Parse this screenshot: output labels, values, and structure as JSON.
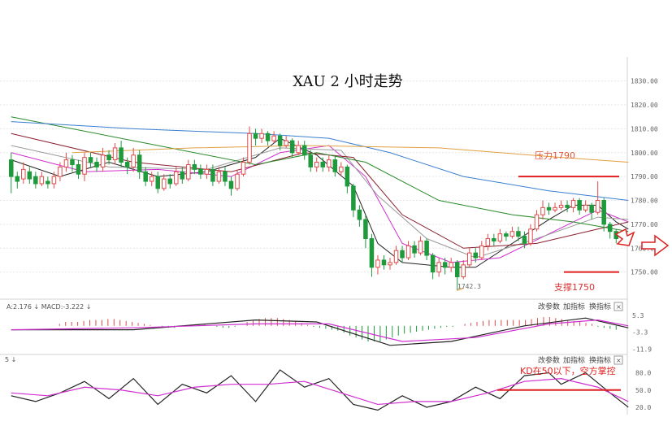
{
  "chart_data": {
    "type": "candlestick",
    "title": "XAU 2 小时走势",
    "symbol": "XAU",
    "timeframe": "2 小时",
    "ylim": [
      1740,
      1835
    ],
    "yticks": [
      "1830.00",
      "1820.00",
      "1810.00",
      "1800.00",
      "1790.00",
      "1780.00",
      "1770.00",
      "1760.00",
      "1750.00"
    ],
    "grid": true,
    "candles": [
      [
        1797,
        1790,
        1800,
        1783
      ],
      [
        1790,
        1788,
        1792,
        1785
      ],
      [
        1789,
        1793,
        1796,
        1787
      ],
      [
        1792,
        1789,
        1794,
        1787
      ],
      [
        1790,
        1787,
        1792,
        1785
      ],
      [
        1787,
        1790,
        1792,
        1786
      ],
      [
        1788,
        1787,
        1790,
        1785
      ],
      [
        1787,
        1790,
        1792,
        1785
      ],
      [
        1790,
        1794,
        1796,
        1788
      ],
      [
        1794,
        1797,
        1800,
        1792
      ],
      [
        1797,
        1795,
        1799,
        1792
      ],
      [
        1795,
        1791,
        1797,
        1789
      ],
      [
        1791,
        1798,
        1800,
        1788
      ],
      [
        1798,
        1796,
        1800,
        1794
      ],
      [
        1796,
        1794,
        1798,
        1792
      ],
      [
        1794,
        1799,
        1802,
        1792
      ],
      [
        1799,
        1797,
        1801,
        1795
      ],
      [
        1797,
        1802,
        1804,
        1795
      ],
      [
        1802,
        1796,
        1805,
        1794
      ],
      [
        1796,
        1794,
        1798,
        1791
      ],
      [
        1794,
        1799,
        1802,
        1792
      ],
      [
        1799,
        1792,
        1801,
        1789
      ],
      [
        1792,
        1788,
        1794,
        1786
      ],
      [
        1788,
        1790,
        1792,
        1786
      ],
      [
        1790,
        1785,
        1792,
        1783
      ],
      [
        1785,
        1789,
        1791,
        1784
      ],
      [
        1789,
        1787,
        1791,
        1785
      ],
      [
        1787,
        1792,
        1794,
        1786
      ],
      [
        1792,
        1789,
        1794,
        1787
      ],
      [
        1789,
        1795,
        1797,
        1788
      ],
      [
        1795,
        1793,
        1797,
        1791
      ],
      [
        1793,
        1791,
        1795,
        1789
      ],
      [
        1791,
        1793,
        1795,
        1789
      ],
      [
        1793,
        1788,
        1795,
        1786
      ],
      [
        1788,
        1792,
        1794,
        1787
      ],
      [
        1792,
        1788,
        1794,
        1786
      ],
      [
        1788,
        1785,
        1790,
        1782
      ],
      [
        1785,
        1791,
        1793,
        1784
      ],
      [
        1791,
        1796,
        1798,
        1790
      ],
      [
        1796,
        1808,
        1811,
        1795
      ],
      [
        1808,
        1806,
        1810,
        1803
      ],
      [
        1806,
        1808,
        1810,
        1804
      ],
      [
        1808,
        1805,
        1809,
        1803
      ],
      [
        1805,
        1807,
        1809,
        1804
      ],
      [
        1807,
        1803,
        1808,
        1801
      ],
      [
        1803,
        1805,
        1807,
        1802
      ],
      [
        1805,
        1800,
        1806,
        1798
      ],
      [
        1800,
        1803,
        1805,
        1799
      ],
      [
        1803,
        1799,
        1805,
        1797
      ],
      [
        1799,
        1794,
        1801,
        1792
      ],
      [
        1794,
        1796,
        1798,
        1792
      ],
      [
        1796,
        1794,
        1798,
        1792
      ],
      [
        1794,
        1797,
        1799,
        1792
      ],
      [
        1797,
        1792,
        1799,
        1790
      ],
      [
        1792,
        1794,
        1796,
        1790
      ],
      [
        1794,
        1786,
        1795,
        1783
      ],
      [
        1786,
        1776,
        1787,
        1773
      ],
      [
        1776,
        1772,
        1778,
        1769
      ],
      [
        1772,
        1764,
        1774,
        1760
      ],
      [
        1764,
        1752,
        1766,
        1748
      ],
      [
        1752,
        1755,
        1757,
        1749
      ],
      [
        1755,
        1753,
        1757,
        1751
      ],
      [
        1753,
        1754,
        1756,
        1751
      ],
      [
        1754,
        1759,
        1761,
        1753
      ],
      [
        1759,
        1756,
        1761,
        1754
      ],
      [
        1756,
        1761,
        1763,
        1755
      ],
      [
        1761,
        1758,
        1763,
        1756
      ],
      [
        1758,
        1763,
        1765,
        1757
      ],
      [
        1763,
        1757,
        1764,
        1755
      ],
      [
        1757,
        1750,
        1758,
        1747
      ],
      [
        1750,
        1754,
        1756,
        1748
      ],
      [
        1754,
        1752,
        1756,
        1749
      ],
      [
        1752,
        1754,
        1756,
        1750
      ],
      [
        1754,
        1748,
        1755,
        1742.3
      ],
      [
        1748,
        1753,
        1755,
        1747
      ],
      [
        1753,
        1758,
        1760,
        1752
      ],
      [
        1758,
        1756,
        1760,
        1754
      ],
      [
        1756,
        1761,
        1763,
        1755
      ],
      [
        1761,
        1764,
        1766,
        1759
      ],
      [
        1764,
        1763,
        1766,
        1761
      ],
      [
        1763,
        1766,
        1768,
        1762
      ],
      [
        1766,
        1765,
        1767,
        1763
      ],
      [
        1765,
        1767,
        1769,
        1764
      ],
      [
        1767,
        1765,
        1769,
        1763
      ],
      [
        1765,
        1762,
        1767,
        1760
      ],
      [
        1762,
        1768,
        1770,
        1761
      ],
      [
        1768,
        1774,
        1776,
        1767
      ],
      [
        1774,
        1777,
        1780,
        1772
      ],
      [
        1777,
        1776,
        1779,
        1774
      ],
      [
        1776,
        1777,
        1779,
        1775
      ],
      [
        1777,
        1778,
        1780,
        1776
      ],
      [
        1778,
        1777,
        1780,
        1775
      ],
      [
        1777,
        1780,
        1781,
        1775
      ],
      [
        1780,
        1776,
        1781,
        1774
      ],
      [
        1776,
        1778,
        1780,
        1775
      ],
      [
        1778,
        1775,
        1779,
        1772
      ],
      [
        1775,
        1780,
        1788,
        1774
      ],
      [
        1780,
        1770,
        1781,
        1767
      ],
      [
        1770,
        1767,
        1771,
        1764
      ],
      [
        1767,
        1764,
        1768,
        1762
      ]
    ],
    "moving_averages": {
      "black": [
        [
          0,
          1797
        ],
        [
          8,
          1790
        ],
        [
          16,
          1796
        ],
        [
          24,
          1790
        ],
        [
          32,
          1792
        ],
        [
          40,
          1798
        ],
        [
          44,
          1806
        ],
        [
          50,
          1799
        ],
        [
          56,
          1786
        ],
        [
          60,
          1762
        ],
        [
          64,
          1754
        ],
        [
          72,
          1752
        ],
        [
          76,
          1752
        ],
        [
          82,
          1762
        ],
        [
          88,
          1772
        ],
        [
          92,
          1778
        ],
        [
          96,
          1778
        ],
        [
          99,
          1771
        ],
        [
          101,
          1768
        ]
      ],
      "magenta": [
        [
          0,
          1800
        ],
        [
          12,
          1792
        ],
        [
          24,
          1793
        ],
        [
          36,
          1790
        ],
        [
          44,
          1800
        ],
        [
          52,
          1803
        ],
        [
          58,
          1790
        ],
        [
          64,
          1762
        ],
        [
          72,
          1754
        ],
        [
          80,
          1756
        ],
        [
          88,
          1766
        ],
        [
          96,
          1776
        ],
        [
          101,
          1771
        ]
      ],
      "gray": [
        [
          0,
          1803
        ],
        [
          16,
          1794
        ],
        [
          32,
          1793
        ],
        [
          44,
          1802
        ],
        [
          54,
          1801
        ],
        [
          60,
          1782
        ],
        [
          68,
          1764
        ],
        [
          76,
          1756
        ],
        [
          86,
          1764
        ],
        [
          96,
          1773
        ],
        [
          101,
          1772
        ]
      ],
      "darkred": [
        [
          0,
          1808
        ],
        [
          20,
          1796
        ],
        [
          36,
          1792
        ],
        [
          48,
          1800
        ],
        [
          56,
          1798
        ],
        [
          64,
          1774
        ],
        [
          74,
          1760
        ],
        [
          86,
          1762
        ],
        [
          96,
          1768
        ],
        [
          101,
          1771
        ]
      ],
      "green": [
        [
          0,
          1815
        ],
        [
          20,
          1805
        ],
        [
          40,
          1795
        ],
        [
          50,
          1800
        ],
        [
          58,
          1796
        ],
        [
          70,
          1780
        ],
        [
          82,
          1774
        ],
        [
          92,
          1771
        ],
        [
          101,
          1767
        ]
      ],
      "blue": [
        [
          0,
          1813
        ],
        [
          20,
          1810
        ],
        [
          40,
          1808
        ],
        [
          52,
          1806
        ],
        [
          62,
          1800
        ],
        [
          74,
          1790
        ],
        [
          88,
          1784
        ],
        [
          101,
          1780
        ]
      ],
      "orange": [
        [
          10,
          1800
        ],
        [
          30,
          1802
        ],
        [
          48,
          1803
        ],
        [
          70,
          1802
        ],
        [
          90,
          1798
        ],
        [
          101,
          1796
        ]
      ]
    },
    "annotations": {
      "resistance_label": "压力1790",
      "resistance_value": 1790,
      "support_label": "支撑1750",
      "support_value": 1750,
      "low_label": "1742.3",
      "low_value": 1742.3,
      "low_index": 73,
      "kd_note": "KD在50以下，空方掌控"
    },
    "macd_panel": {
      "header": "A:2.176 ↓  MACD:-3.222 ↓",
      "yticks": [
        "5.3",
        "-3.3",
        "-11.9"
      ],
      "ylim": [
        -13,
        7
      ],
      "bars": [
        0,
        0,
        0,
        0,
        0,
        0,
        0,
        0,
        1,
        2,
        2,
        2,
        2.5,
        3,
        3,
        3,
        3.5,
        3.5,
        3,
        2.5,
        2,
        1.5,
        1,
        0.5,
        0,
        -0.5,
        -1,
        -1,
        -0.5,
        0,
        0,
        0.5,
        0.5,
        0,
        -0.5,
        -1,
        -1,
        -0.5,
        0,
        2,
        3,
        3.5,
        4,
        4,
        4,
        3.5,
        3,
        2.5,
        1.5,
        0.5,
        -0.5,
        -1,
        -1.5,
        -2,
        -2.5,
        -3.5,
        -5,
        -6,
        -7,
        -8,
        -8,
        -8,
        -7,
        -6,
        -5,
        -4,
        -3.5,
        -3,
        -2.5,
        -2,
        -1.5,
        -1,
        -0.5,
        -0.5,
        0,
        1,
        1.5,
        2,
        2.5,
        3,
        3,
        3,
        3,
        3,
        3,
        3,
        3.5,
        4,
        4.5,
        4.5,
        4,
        3.5,
        3,
        2.5,
        2,
        1.5,
        1,
        -0.5,
        -1,
        -1.5,
        -2
      ],
      "dif": [
        [
          0,
          -2
        ],
        [
          20,
          -2
        ],
        [
          40,
          3
        ],
        [
          50,
          2
        ],
        [
          62,
          -10
        ],
        [
          72,
          -8
        ],
        [
          84,
          0
        ],
        [
          94,
          4
        ],
        [
          101,
          -1
        ]
      ],
      "dea": [
        [
          0,
          -2
        ],
        [
          20,
          -1
        ],
        [
          40,
          1
        ],
        [
          52,
          1
        ],
        [
          64,
          -8
        ],
        [
          76,
          -6
        ],
        [
          88,
          1
        ],
        [
          96,
          3
        ],
        [
          101,
          0
        ]
      ]
    },
    "kd_panel": {
      "header": "5 ↓",
      "yticks": [
        "80.0",
        "50.0",
        "20.0"
      ],
      "ylim": [
        10,
        95
      ],
      "level_line": 50,
      "k": [
        [
          0,
          40
        ],
        [
          4,
          30
        ],
        [
          8,
          45
        ],
        [
          12,
          65
        ],
        [
          16,
          35
        ],
        [
          20,
          70
        ],
        [
          24,
          25
        ],
        [
          28,
          60
        ],
        [
          32,
          45
        ],
        [
          36,
          75
        ],
        [
          40,
          30
        ],
        [
          44,
          85
        ],
        [
          48,
          55
        ],
        [
          52,
          70
        ],
        [
          56,
          25
        ],
        [
          60,
          15
        ],
        [
          64,
          40
        ],
        [
          68,
          20
        ],
        [
          72,
          30
        ],
        [
          76,
          55
        ],
        [
          80,
          35
        ],
        [
          84,
          75
        ],
        [
          88,
          80
        ],
        [
          90,
          60
        ],
        [
          94,
          80
        ],
        [
          98,
          45
        ],
        [
          101,
          20
        ]
      ],
      "d": [
        [
          0,
          45
        ],
        [
          6,
          40
        ],
        [
          12,
          55
        ],
        [
          18,
          50
        ],
        [
          24,
          40
        ],
        [
          30,
          55
        ],
        [
          36,
          60
        ],
        [
          42,
          60
        ],
        [
          48,
          65
        ],
        [
          54,
          45
        ],
        [
          60,
          25
        ],
        [
          66,
          30
        ],
        [
          72,
          30
        ],
        [
          78,
          45
        ],
        [
          84,
          65
        ],
        [
          90,
          70
        ],
        [
          96,
          55
        ],
        [
          101,
          30
        ]
      ]
    },
    "buttons": [
      "改参数",
      "加指标",
      "换指标"
    ],
    "close_icon": "×",
    "colors": {
      "up": "#e04b4b",
      "down": "#1e9a3c",
      "resistance": "#e02020",
      "support": "#e02020",
      "grid": "#e6e6e6"
    }
  }
}
